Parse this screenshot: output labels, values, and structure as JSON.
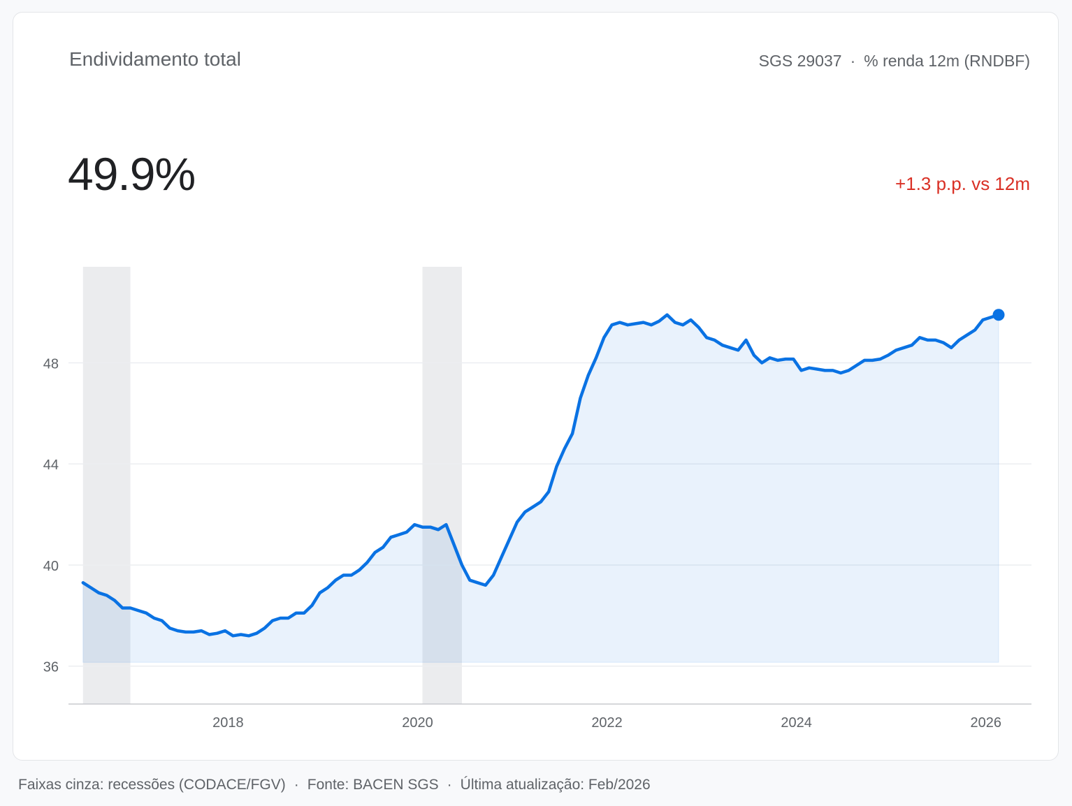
{
  "header": {
    "title": "Endividamento total",
    "series_code": "SGS 29037",
    "unit_label": "% renda 12m (RNDBF)"
  },
  "kpi": {
    "value": "49.9%",
    "delta": "+1.3 p.p. vs 12m"
  },
  "footer": {
    "recessions_note": "Faixas cinza: recessões (CODACE/FGV)",
    "source": "Fonte: BACEN SGS",
    "updated": "Última atualização: Feb/2026"
  },
  "colors": {
    "line": "#0a72e3",
    "area": "#eaf2fc",
    "recession": "#ebecee",
    "grid": "#eceef1",
    "delta": "#d93025"
  },
  "chart_data": {
    "type": "area",
    "x_ticks": [
      "2018",
      "2020",
      "2022",
      "2024",
      "2026"
    ],
    "y_ticks": [
      36,
      40,
      44,
      48
    ],
    "ylim": [
      34.5,
      51.8
    ],
    "xlim": [
      "2016-05",
      "2026-07"
    ],
    "grid": true,
    "recessions": [
      {
        "start": "2016-06",
        "end": "2016-12"
      },
      {
        "start": "2020-01",
        "end": "2020-06"
      }
    ],
    "series": [
      {
        "x": [
          "2016-06",
          "2016-07",
          "2016-08",
          "2016-09",
          "2016-10",
          "2016-11",
          "2016-12",
          "2017-01",
          "2017-02",
          "2017-03",
          "2017-04",
          "2017-05",
          "2017-06",
          "2017-07",
          "2017-08",
          "2017-09",
          "2017-10",
          "2017-11",
          "2017-12",
          "2018-01",
          "2018-02",
          "2018-03",
          "2018-04",
          "2018-05",
          "2018-06",
          "2018-07",
          "2018-08",
          "2018-09",
          "2018-10",
          "2018-11",
          "2018-12",
          "2019-01",
          "2019-02",
          "2019-03",
          "2019-04",
          "2019-05",
          "2019-06",
          "2019-07",
          "2019-08",
          "2019-09",
          "2019-10",
          "2019-11",
          "2019-12",
          "2020-01",
          "2020-02",
          "2020-03",
          "2020-04",
          "2020-05",
          "2020-06",
          "2020-07",
          "2020-08",
          "2020-09",
          "2020-10",
          "2020-11",
          "2020-12",
          "2021-01",
          "2021-02",
          "2021-03",
          "2021-04",
          "2021-05",
          "2021-06",
          "2021-07",
          "2021-08",
          "2021-09",
          "2021-10",
          "2021-11",
          "2021-12",
          "2022-01",
          "2022-02",
          "2022-03",
          "2022-04",
          "2022-05",
          "2022-06",
          "2022-07",
          "2022-08",
          "2022-09",
          "2022-10",
          "2022-11",
          "2022-12",
          "2023-01",
          "2023-02",
          "2023-03",
          "2023-04",
          "2023-05",
          "2023-06",
          "2023-07",
          "2023-08",
          "2023-09",
          "2023-10",
          "2023-11",
          "2023-12",
          "2024-01",
          "2024-02",
          "2024-03",
          "2024-04",
          "2024-05",
          "2024-06",
          "2024-07",
          "2024-08",
          "2024-09",
          "2024-10",
          "2024-11",
          "2024-12",
          "2025-01",
          "2025-02",
          "2025-03",
          "2025-04",
          "2025-05",
          "2025-06",
          "2025-07",
          "2025-08",
          "2025-09",
          "2025-10",
          "2025-11",
          "2025-12",
          "2026-01",
          "2026-02"
        ],
        "values": [
          39.3,
          39.1,
          38.9,
          38.8,
          38.6,
          38.3,
          38.3,
          38.2,
          38.1,
          37.9,
          37.8,
          37.5,
          37.4,
          37.35,
          37.35,
          37.4,
          37.25,
          37.3,
          37.4,
          37.2,
          37.25,
          37.2,
          37.3,
          37.5,
          37.8,
          37.9,
          37.9,
          38.1,
          38.1,
          38.4,
          38.9,
          39.1,
          39.4,
          39.6,
          39.6,
          39.8,
          40.1,
          40.5,
          40.7,
          41.1,
          41.2,
          41.3,
          41.6,
          41.5,
          41.5,
          41.4,
          41.6,
          40.8,
          40.0,
          39.4,
          39.3,
          39.2,
          39.6,
          40.3,
          41.0,
          41.7,
          42.1,
          42.3,
          42.5,
          42.9,
          43.9,
          44.6,
          45.2,
          46.6,
          47.5,
          48.2,
          49.0,
          49.5,
          49.6,
          49.5,
          49.55,
          49.6,
          49.5,
          49.65,
          49.9,
          49.6,
          49.5,
          49.7,
          49.4,
          49.0,
          48.9,
          48.7,
          48.6,
          48.5,
          48.9,
          48.3,
          48.0,
          48.2,
          48.1,
          48.15,
          48.15,
          47.7,
          47.8,
          47.75,
          47.7,
          47.7,
          47.6,
          47.7,
          47.9,
          48.1,
          48.1,
          48.15,
          48.3,
          48.5,
          48.6,
          48.7,
          49.0,
          48.9,
          48.9,
          48.8,
          48.6,
          48.9,
          49.1,
          49.3,
          49.7,
          49.8,
          49.9
        ]
      }
    ]
  }
}
